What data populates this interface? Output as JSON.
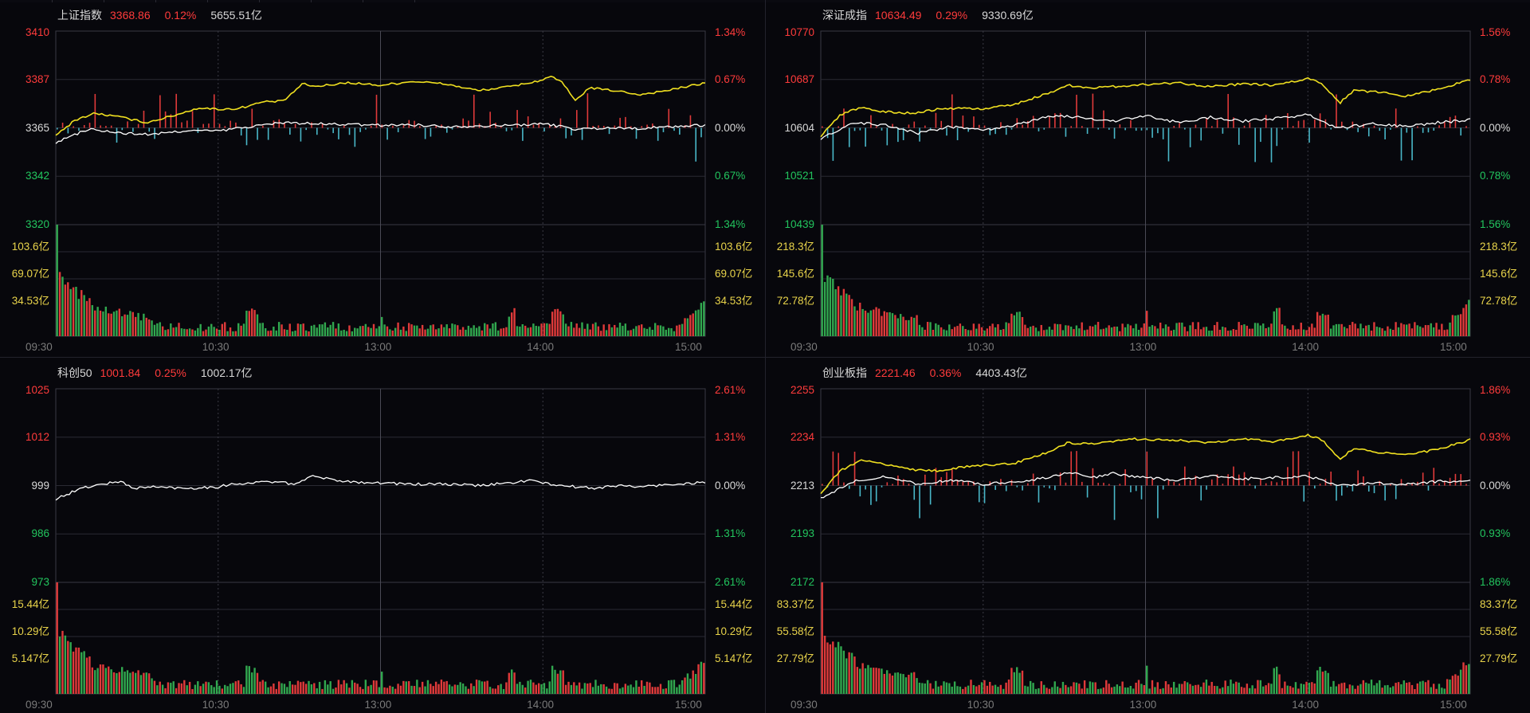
{
  "times": [
    "09:30",
    "10:30",
    "13:00",
    "14:00",
    "15:00"
  ],
  "colors": {
    "up": "#ff3b3b",
    "down": "#22c55e",
    "flat": "#d8d8d8",
    "vol_label": "#e8d34a",
    "line_avg": "#f0e020",
    "line_price": "#ffffff",
    "bar_up": "#e03a3a",
    "bar_down": "#31a84f",
    "macd_up": "#e03a3a",
    "macd_down": "#49b7c8",
    "grid": "#2a2a33",
    "border": "#3a3a44"
  },
  "panels": [
    {
      "name": "上证指数",
      "price": "3368.86",
      "change_pct": "0.12%",
      "amount": "5655.51亿",
      "price_labels": [
        "3410",
        "3387",
        "3365",
        "3342",
        "3320"
      ],
      "pct_labels": [
        "1.34%",
        "0.67%",
        "0.00%",
        "0.67%",
        "1.34%"
      ],
      "vol_labels": [
        "103.6亿",
        "69.07亿",
        "34.53亿"
      ],
      "has_avg": true
    },
    {
      "name": "深证成指",
      "price": "10634.49",
      "change_pct": "0.29%",
      "amount": "9330.69亿",
      "price_labels": [
        "10770",
        "10687",
        "10604",
        "10521",
        "10439"
      ],
      "pct_labels": [
        "1.56%",
        "0.78%",
        "0.00%",
        "0.78%",
        "1.56%"
      ],
      "vol_labels": [
        "218.3亿",
        "145.6亿",
        "72.78亿"
      ],
      "has_avg": true
    },
    {
      "name": "科创50",
      "price": "1001.84",
      "change_pct": "0.25%",
      "amount": "1002.17亿",
      "price_labels": [
        "1025",
        "1012",
        "999",
        "986",
        "973"
      ],
      "pct_labels": [
        "2.61%",
        "1.31%",
        "0.00%",
        "1.31%",
        "2.61%"
      ],
      "vol_labels": [
        "15.44亿",
        "10.29亿",
        "5.147亿"
      ],
      "has_avg": false
    },
    {
      "name": "创业板指",
      "price": "2221.46",
      "change_pct": "0.36%",
      "amount": "4403.43亿",
      "price_labels": [
        "2255",
        "2234",
        "2213",
        "2193",
        "2172"
      ],
      "pct_labels": [
        "1.86%",
        "0.93%",
        "0.00%",
        "0.93%",
        "1.86%"
      ],
      "vol_labels": [
        "83.37亿",
        "55.58亿",
        "27.79亿"
      ],
      "has_avg": true
    }
  ],
  "chart_data": [
    {
      "type": "line",
      "title": "上证指数",
      "x": [
        "09:30",
        "10:30",
        "13:00",
        "14:00",
        "15:00"
      ],
      "y_range": [
        3320,
        3410
      ],
      "last": 3368.86,
      "note_series": [
        "price",
        "avg"
      ]
    },
    {
      "type": "line",
      "title": "深证成指",
      "x": [
        "09:30",
        "10:30",
        "13:00",
        "14:00",
        "15:00"
      ],
      "y_range": [
        10439,
        10770
      ],
      "last": 10634.49
    },
    {
      "type": "line",
      "title": "科创50",
      "x": [
        "09:30",
        "10:30",
        "13:00",
        "14:00",
        "15:00"
      ],
      "y_range": [
        973,
        1025
      ],
      "last": 1001.84
    },
    {
      "type": "line",
      "title": "创业板指",
      "x": [
        "09:30",
        "10:30",
        "13:00",
        "14:00",
        "15:00"
      ],
      "y_range": [
        2172,
        2255
      ],
      "last": 2221.46
    }
  ]
}
